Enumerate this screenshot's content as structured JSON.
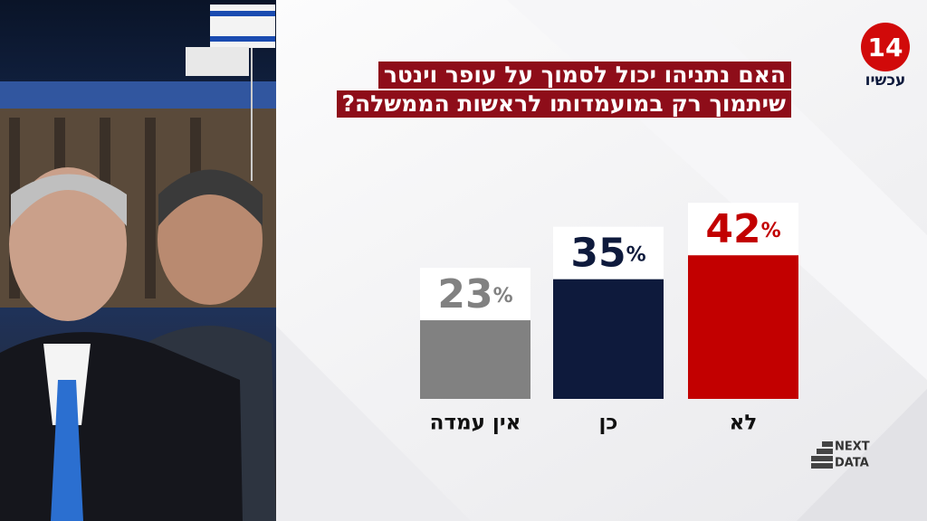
{
  "chart_data": {
    "type": "bar",
    "title_lines": [
      "האם נתניהו יכול לסמוך על עופר וינטר",
      "שיתמוך רק במועמדותו לראשות הממשלה?"
    ],
    "categories": [
      "אין עמדה",
      "כן",
      "לא"
    ],
    "values": [
      23,
      35,
      42
    ],
    "value_labels": [
      "23%",
      "35%",
      "42%"
    ],
    "colors": [
      "#818181",
      "#0e1a3c",
      "#c20000"
    ]
  },
  "logo": {
    "number": "14",
    "text": "עכשיו"
  },
  "source_logo": [
    "NEXT",
    "DATA"
  ]
}
